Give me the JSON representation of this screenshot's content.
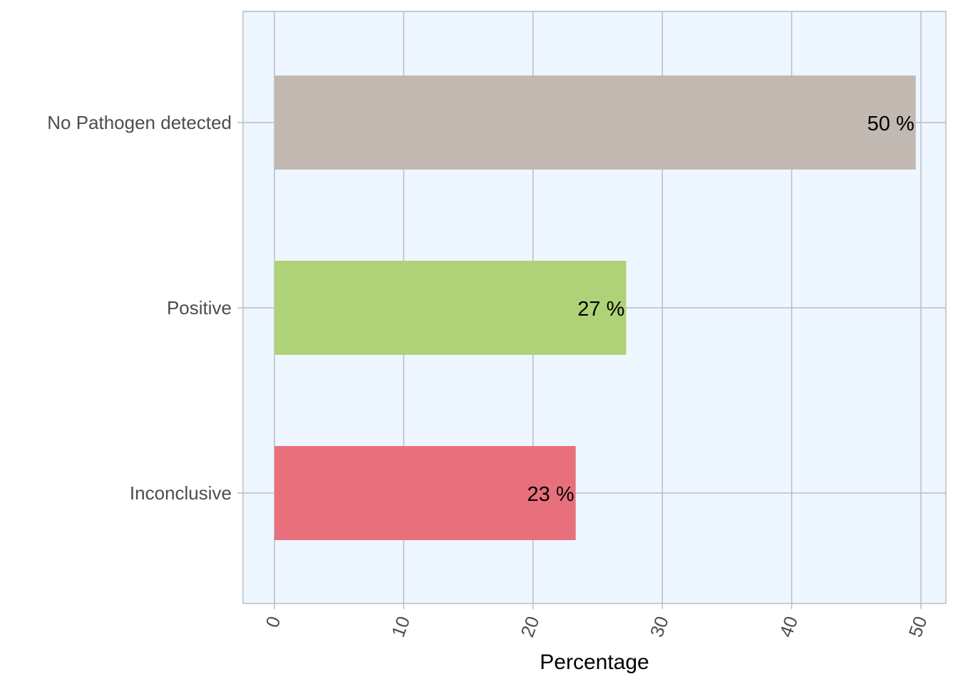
{
  "chart_data": {
    "type": "bar",
    "orientation": "horizontal",
    "categories": [
      "No Pathogen detected",
      "Positive",
      "Inconclusive"
    ],
    "values": [
      49.6,
      27.2,
      23.3
    ],
    "data_labels": [
      "50 %",
      "27 %",
      "23 %"
    ],
    "colors": [
      "#c1b9b1",
      "#afd178",
      "#e8707c"
    ],
    "xlabel": "Percentage",
    "ylabel": "",
    "title": "",
    "xlim": [
      -2.5,
      52
    ],
    "xticks": [
      0,
      10,
      20,
      30,
      40,
      50
    ],
    "xtick_labels": [
      "0",
      "10",
      "20",
      "30",
      "40",
      "50"
    ],
    "grid": true,
    "panel_background": "#eef6ff",
    "grid_color": "#b8bec6"
  }
}
